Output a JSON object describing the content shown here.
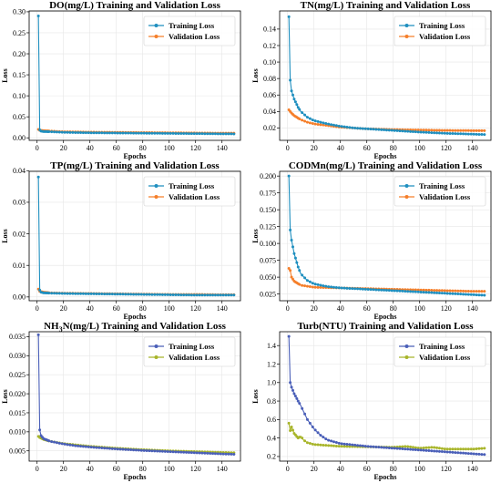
{
  "chart_data": [
    {
      "type": "line",
      "title": "DO(mg/L) Training and Validation Loss",
      "xlabel": "Epochs",
      "ylabel": "Loss",
      "xlim": [
        -6,
        154
      ],
      "ylim": [
        -0.006,
        0.302
      ],
      "x_ticks": [
        0,
        20,
        40,
        60,
        80,
        100,
        120,
        140
      ],
      "y_ticks": [
        "0.00",
        "0.05",
        "0.10",
        "0.15",
        "0.20",
        "0.25",
        "0.30"
      ],
      "grid": true,
      "legend_position": "top-right",
      "colors": [
        "#1f8fbf",
        "#f57f2a"
      ],
      "series": [
        {
          "name": "Training Loss",
          "points": [
            [
              1,
              0.29
            ],
            [
              2,
              0.019
            ],
            [
              3,
              0.016
            ],
            [
              5,
              0.015
            ],
            [
              10,
              0.0145
            ],
            [
              20,
              0.013
            ],
            [
              40,
              0.012
            ],
            [
              60,
              0.0115
            ],
            [
              80,
              0.011
            ],
            [
              100,
              0.0105
            ],
            [
              120,
              0.01
            ],
            [
              140,
              0.0095
            ],
            [
              150,
              0.0093
            ]
          ]
        },
        {
          "name": "Validation Loss",
          "points": [
            [
              1,
              0.02
            ],
            [
              2,
              0.018
            ],
            [
              5,
              0.017
            ],
            [
              10,
              0.016
            ],
            [
              20,
              0.0145
            ],
            [
              40,
              0.0135
            ],
            [
              60,
              0.013
            ],
            [
              80,
              0.0125
            ],
            [
              100,
              0.012
            ],
            [
              120,
              0.0115
            ],
            [
              140,
              0.011
            ],
            [
              150,
              0.011
            ]
          ]
        }
      ]
    },
    {
      "type": "line",
      "title": "TN(mg/L) Training and Validation Loss",
      "xlabel": "Epochs",
      "ylabel": "Loss",
      "xlim": [
        -6,
        154
      ],
      "ylim": [
        0.005,
        0.162
      ],
      "x_ticks": [
        0,
        20,
        40,
        60,
        80,
        100,
        120,
        140
      ],
      "y_ticks": [
        "0.02",
        "0.04",
        "0.06",
        "0.08",
        "0.10",
        "0.12",
        "0.14"
      ],
      "grid": true,
      "legend_position": "top-right",
      "colors": [
        "#1f8fbf",
        "#f57f2a"
      ],
      "series": [
        {
          "name": "Training Loss",
          "points": [
            [
              1,
              0.155
            ],
            [
              2,
              0.078
            ],
            [
              3,
              0.065
            ],
            [
              5,
              0.055
            ],
            [
              8,
              0.045
            ],
            [
              10,
              0.04
            ],
            [
              15,
              0.033
            ],
            [
              20,
              0.029
            ],
            [
              30,
              0.025
            ],
            [
              40,
              0.022
            ],
            [
              50,
              0.02
            ],
            [
              60,
              0.019
            ],
            [
              80,
              0.017
            ],
            [
              100,
              0.015
            ],
            [
              120,
              0.0135
            ],
            [
              140,
              0.0125
            ],
            [
              150,
              0.012
            ]
          ]
        },
        {
          "name": "Validation Loss",
          "points": [
            [
              1,
              0.042
            ],
            [
              3,
              0.038
            ],
            [
              5,
              0.035
            ],
            [
              10,
              0.03
            ],
            [
              15,
              0.027
            ],
            [
              20,
              0.025
            ],
            [
              30,
              0.023
            ],
            [
              40,
              0.021
            ],
            [
              60,
              0.019
            ],
            [
              80,
              0.018
            ],
            [
              100,
              0.0175
            ],
            [
              120,
              0.017
            ],
            [
              140,
              0.0168
            ],
            [
              150,
              0.0168
            ]
          ]
        }
      ]
    },
    {
      "type": "line",
      "title": "TP(mg/L) Training and Validation Loss",
      "xlabel": "Epochs",
      "ylabel": "Loss",
      "xlim": [
        -6,
        154
      ],
      "ylim": [
        -0.0012,
        0.0398
      ],
      "x_ticks": [
        0,
        20,
        40,
        60,
        80,
        100,
        120,
        140
      ],
      "y_ticks": [
        "0.00",
        "0.01",
        "0.02",
        "0.03",
        "0.04"
      ],
      "grid": true,
      "legend_position": "top-right",
      "colors": [
        "#1f8fbf",
        "#f57f2a"
      ],
      "series": [
        {
          "name": "Training Loss",
          "points": [
            [
              1,
              0.038
            ],
            [
              2,
              0.0022
            ],
            [
              3,
              0.0015
            ],
            [
              5,
              0.0013
            ],
            [
              10,
              0.0012
            ],
            [
              20,
              0.0011
            ],
            [
              40,
              0.001
            ],
            [
              60,
              0.0009
            ],
            [
              80,
              0.0008
            ],
            [
              100,
              0.0007
            ],
            [
              120,
              0.0006
            ],
            [
              140,
              0.0006
            ],
            [
              150,
              0.0006
            ]
          ]
        },
        {
          "name": "Validation Loss",
          "points": [
            [
              1,
              0.0025
            ],
            [
              2,
              0.0018
            ],
            [
              5,
              0.0015
            ],
            [
              10,
              0.0013
            ],
            [
              20,
              0.0012
            ],
            [
              40,
              0.0011
            ],
            [
              60,
              0.001
            ],
            [
              80,
              0.0009
            ],
            [
              100,
              0.0008
            ],
            [
              120,
              0.0008
            ],
            [
              140,
              0.0007
            ],
            [
              150,
              0.0007
            ]
          ]
        }
      ]
    },
    {
      "type": "line",
      "title": "CODMn(mg/L) Training and Validation Loss",
      "xlabel": "Epochs",
      "ylabel": "Loss",
      "xlim": [
        -6,
        154
      ],
      "ylim": [
        0.015,
        0.207
      ],
      "x_ticks": [
        0,
        20,
        40,
        60,
        80,
        100,
        120,
        140
      ],
      "y_ticks": [
        "0.025",
        "0.050",
        "0.075",
        "0.100",
        "0.125",
        "0.150",
        "0.175",
        "0.200"
      ],
      "grid": true,
      "legend_position": "top-right",
      "colors": [
        "#1f8fbf",
        "#f57f2a",
        "#b5b82a"
      ],
      "series": [
        {
          "name": "Training Loss",
          "points": [
            [
              1,
              0.2
            ],
            [
              2,
              0.12
            ],
            [
              3,
              0.105
            ],
            [
              5,
              0.085
            ],
            [
              8,
              0.065
            ],
            [
              10,
              0.055
            ],
            [
              15,
              0.045
            ],
            [
              20,
              0.04
            ],
            [
              30,
              0.036
            ],
            [
              40,
              0.034
            ],
            [
              60,
              0.032
            ],
            [
              80,
              0.03
            ],
            [
              100,
              0.028
            ],
            [
              120,
              0.026
            ],
            [
              140,
              0.024
            ],
            [
              150,
              0.023
            ]
          ]
        },
        {
          "name": "Validation Loss",
          "points": [
            [
              1,
              0.063
            ],
            [
              2,
              0.06
            ],
            [
              3,
              0.05
            ],
            [
              5,
              0.044
            ],
            [
              10,
              0.038
            ],
            [
              20,
              0.035
            ],
            [
              40,
              0.034
            ],
            [
              60,
              0.033
            ],
            [
              80,
              0.032
            ],
            [
              100,
              0.031
            ],
            [
              120,
              0.03
            ],
            [
              140,
              0.029
            ],
            [
              150,
              0.029
            ]
          ]
        }
      ]
    },
    {
      "type": "line",
      "title": "NH3N(mg/L) Training and Validation Loss",
      "title_parts": [
        "NH",
        "3",
        "N(mg/L) Training and Validation Loss"
      ],
      "xlabel": "Epochs",
      "ylabel": "Loss",
      "xlim": [
        -6,
        154
      ],
      "ylim": [
        0.0023,
        0.0363
      ],
      "x_ticks": [
        0,
        20,
        40,
        60,
        80,
        100,
        120,
        140
      ],
      "y_ticks": [
        "0.005",
        "0.010",
        "0.015",
        "0.020",
        "0.025",
        "0.030",
        "0.035"
      ],
      "grid": true,
      "legend_position": "top-right",
      "colors": [
        "#4a5fb8",
        "#a8b52a"
      ],
      "series": [
        {
          "name": "Training Loss",
          "points": [
            [
              1,
              0.0355
            ],
            [
              2,
              0.0105
            ],
            [
              3,
              0.009
            ],
            [
              5,
              0.0082
            ],
            [
              10,
              0.0075
            ],
            [
              20,
              0.0068
            ],
            [
              30,
              0.0063
            ],
            [
              40,
              0.006
            ],
            [
              60,
              0.0055
            ],
            [
              80,
              0.0051
            ],
            [
              100,
              0.0048
            ],
            [
              120,
              0.0045
            ],
            [
              140,
              0.0042
            ],
            [
              150,
              0.0041
            ]
          ]
        },
        {
          "name": "Validation Loss",
          "points": [
            [
              1,
              0.0088
            ],
            [
              2,
              0.0085
            ],
            [
              5,
              0.008
            ],
            [
              10,
              0.0075
            ],
            [
              20,
              0.0069
            ],
            [
              40,
              0.0062
            ],
            [
              60,
              0.0057
            ],
            [
              80,
              0.0053
            ],
            [
              100,
              0.005
            ],
            [
              120,
              0.0048
            ],
            [
              140,
              0.0046
            ],
            [
              150,
              0.0045
            ]
          ]
        }
      ]
    },
    {
      "type": "line",
      "title": "Turb(NTU) Training and Validation Loss",
      "xlabel": "Epochs",
      "ylabel": "Loss",
      "xlim": [
        -6,
        154
      ],
      "ylim": [
        0.15,
        1.55
      ],
      "x_ticks": [
        0,
        20,
        40,
        60,
        80,
        100,
        120,
        140
      ],
      "y_ticks": [
        "0.2",
        "0.4",
        "0.6",
        "0.8",
        "1.0",
        "1.2",
        "1.4"
      ],
      "grid": true,
      "legend_position": "top-right",
      "colors": [
        "#4a5fb8",
        "#a8b52a"
      ],
      "series": [
        {
          "name": "Training Loss",
          "points": [
            [
              1,
              1.5
            ],
            [
              2,
              1.0
            ],
            [
              3,
              0.95
            ],
            [
              5,
              0.88
            ],
            [
              8,
              0.8
            ],
            [
              10,
              0.75
            ],
            [
              15,
              0.6
            ],
            [
              20,
              0.5
            ],
            [
              25,
              0.43
            ],
            [
              30,
              0.38
            ],
            [
              40,
              0.34
            ],
            [
              60,
              0.31
            ],
            [
              80,
              0.29
            ],
            [
              100,
              0.27
            ],
            [
              120,
              0.25
            ],
            [
              140,
              0.23
            ],
            [
              150,
              0.22
            ]
          ]
        },
        {
          "name": "Validation Loss",
          "points": [
            [
              1,
              0.56
            ],
            [
              2,
              0.48
            ],
            [
              3,
              0.52
            ],
            [
              5,
              0.45
            ],
            [
              8,
              0.4
            ],
            [
              10,
              0.42
            ],
            [
              12,
              0.38
            ],
            [
              15,
              0.35
            ],
            [
              20,
              0.33
            ],
            [
              30,
              0.32
            ],
            [
              40,
              0.31
            ],
            [
              60,
              0.305
            ],
            [
              80,
              0.3
            ],
            [
              90,
              0.31
            ],
            [
              100,
              0.29
            ],
            [
              110,
              0.3
            ],
            [
              120,
              0.28
            ],
            [
              140,
              0.28
            ],
            [
              150,
              0.29
            ]
          ]
        }
      ]
    }
  ]
}
